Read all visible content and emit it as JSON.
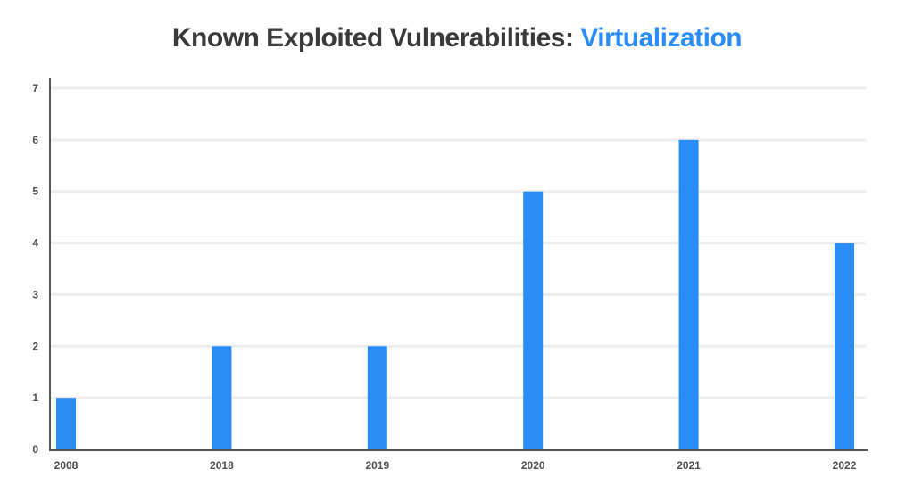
{
  "title": {
    "main": "Known Exploited Vulnerabilities: ",
    "highlight": "Virtualization",
    "highlight_color": "#2a8cf7",
    "color": "#3a3a3a"
  },
  "chart_data": {
    "type": "bar",
    "title": "Known Exploited Vulnerabilities: Virtualization",
    "xlabel": "",
    "ylabel": "",
    "categories": [
      "2008",
      "2018",
      "2019",
      "2020",
      "2021",
      "2022"
    ],
    "series": [
      {
        "values": [
          1,
          2,
          2,
          5,
          6,
          4
        ],
        "color": "#2a8cf7"
      }
    ],
    "ylim": [
      0,
      7
    ],
    "yticks": [
      0,
      1,
      2,
      3,
      4,
      5,
      6,
      7
    ],
    "grid": true,
    "legend": "none"
  }
}
